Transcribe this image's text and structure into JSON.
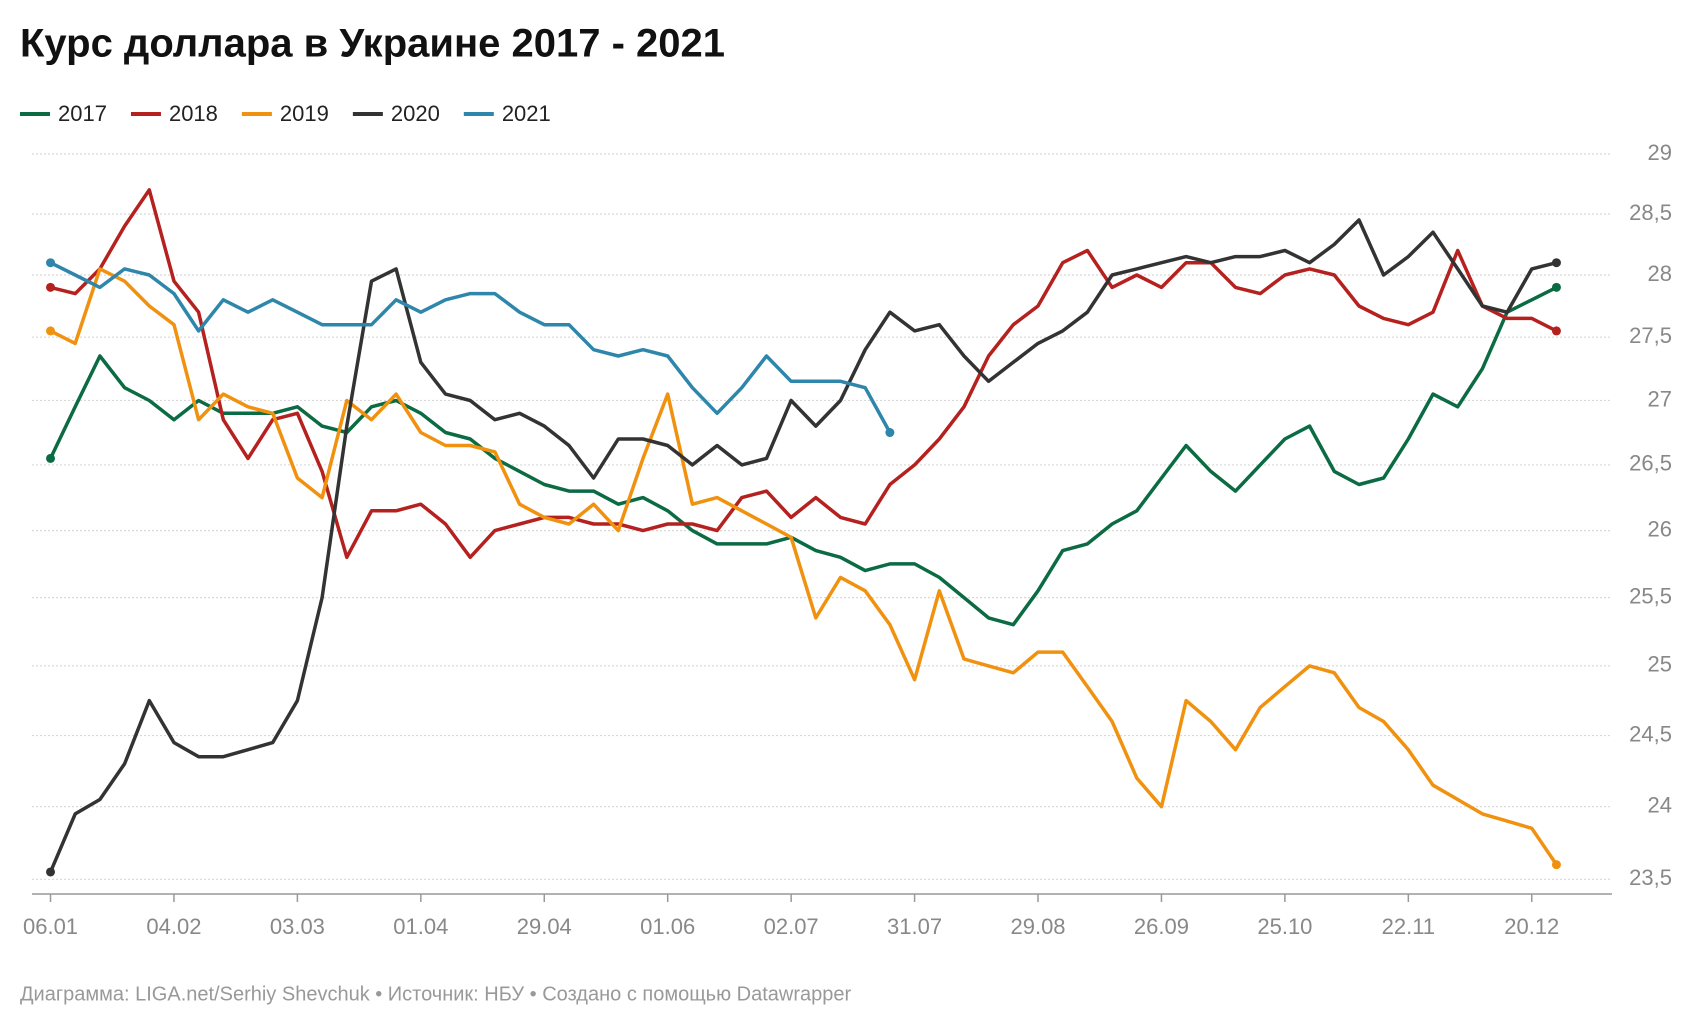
{
  "chart_data": {
    "type": "line",
    "title": "Курс доллара в Украине 2017 - 2021",
    "source": "Диаграмма: LIGA.net/Serhiy Shevchuk • Источник: НБУ • Создано с помощью Datawrapper",
    "legend": "top-left",
    "log_scale": true,
    "grid": true,
    "x": [
      0,
      4,
      8,
      12,
      16,
      20,
      24,
      28,
      32,
      36,
      40,
      44,
      48,
      52,
      56,
      60,
      64,
      68,
      72,
      76,
      80,
      84,
      88,
      92,
      96,
      100,
      104,
      108,
      112,
      116,
      120,
      124,
      128,
      132,
      136,
      140,
      144,
      148,
      152,
      156,
      160,
      164,
      168,
      172,
      176,
      180,
      184,
      188,
      192,
      196,
      200,
      204,
      208,
      212,
      216,
      220,
      224,
      228,
      232,
      236,
      240,
      244
    ],
    "xlim": [
      -3,
      253
    ],
    "xticks": [
      {
        "value": 0,
        "label": "06.01"
      },
      {
        "value": 20,
        "label": "04.02"
      },
      {
        "value": 40,
        "label": "03.03"
      },
      {
        "value": 60,
        "label": "01.04"
      },
      {
        "value": 80,
        "label": "29.04"
      },
      {
        "value": 100,
        "label": "01.06"
      },
      {
        "value": 120,
        "label": "02.07"
      },
      {
        "value": 140,
        "label": "31.07"
      },
      {
        "value": 160,
        "label": "29.08"
      },
      {
        "value": 180,
        "label": "26.09"
      },
      {
        "value": 200,
        "label": "25.10"
      },
      {
        "value": 220,
        "label": "22.11"
      },
      {
        "value": 240,
        "label": "20.12"
      }
    ],
    "ylim": [
      23.4,
      29
    ],
    "yticks": [
      {
        "value": 23.5,
        "label": "23,5"
      },
      24,
      {
        "value": 24.5,
        "label": "24,5"
      },
      25,
      {
        "value": 25.5,
        "label": "25,5"
      },
      26,
      {
        "value": 26.5,
        "label": "26,5"
      },
      27,
      {
        "value": 27.5,
        "label": "27,5"
      },
      28,
      {
        "value": 28.5,
        "label": "28,5"
      },
      29
    ],
    "series": [
      {
        "name": "2017",
        "color": "#0b6b43",
        "values": [
          26.55,
          26.95,
          27.35,
          27.1,
          27.0,
          26.85,
          27.0,
          26.9,
          26.9,
          26.9,
          26.95,
          26.8,
          26.75,
          26.95,
          27.0,
          26.9,
          26.75,
          26.7,
          26.55,
          26.45,
          26.35,
          26.3,
          26.3,
          26.2,
          26.25,
          26.15,
          26.0,
          25.9,
          25.9,
          25.9,
          25.95,
          25.85,
          25.8,
          25.7,
          25.75,
          25.75,
          25.65,
          25.5,
          25.35,
          25.3,
          25.55,
          25.85,
          25.9,
          26.05,
          26.15,
          26.4,
          26.65,
          26.45,
          26.3,
          26.5,
          26.7,
          26.8,
          26.45,
          26.35,
          26.4,
          26.7,
          27.05,
          26.95,
          27.25,
          27.7,
          27.8,
          27.9
        ]
      },
      {
        "name": "2018",
        "color": "#b5211f",
        "values": [
          27.9,
          27.85,
          28.05,
          28.4,
          28.7,
          27.95,
          27.7,
          26.85,
          26.55,
          26.85,
          26.9,
          26.45,
          25.8,
          26.15,
          26.15,
          26.2,
          26.05,
          25.8,
          26.0,
          26.05,
          26.1,
          26.1,
          26.05,
          26.05,
          26.0,
          26.05,
          26.05,
          26.0,
          26.25,
          26.3,
          26.1,
          26.25,
          26.1,
          26.05,
          26.35,
          26.5,
          26.7,
          26.95,
          27.35,
          27.6,
          27.75,
          28.1,
          28.2,
          27.9,
          28.0,
          27.9,
          28.1,
          28.1,
          27.9,
          27.85,
          28.0,
          28.05,
          28.0,
          27.75,
          27.65,
          27.6,
          27.7,
          28.2,
          27.75,
          27.65,
          27.65,
          27.55
        ]
      },
      {
        "name": "2019",
        "color": "#f0920f",
        "values": [
          27.55,
          27.45,
          28.05,
          27.95,
          27.75,
          27.6,
          26.85,
          27.05,
          26.95,
          26.9,
          26.4,
          26.25,
          27.0,
          26.85,
          27.05,
          26.75,
          26.65,
          26.65,
          26.6,
          26.2,
          26.1,
          26.05,
          26.2,
          26.0,
          26.55,
          27.05,
          26.2,
          26.25,
          26.15,
          26.05,
          25.95,
          25.35,
          25.65,
          25.55,
          25.3,
          24.9,
          25.55,
          25.05,
          25.0,
          24.95,
          25.1,
          25.1,
          24.85,
          24.6,
          24.2,
          24.0,
          24.75,
          24.6,
          24.4,
          24.7,
          24.85,
          25.0,
          24.95,
          24.7,
          24.6,
          24.4,
          24.15,
          24.05,
          23.95,
          23.9,
          23.85,
          23.6
        ]
      },
      {
        "name": "2020",
        "color": "#333333",
        "values": [
          23.55,
          23.95,
          24.05,
          24.3,
          24.75,
          24.45,
          24.35,
          24.35,
          24.4,
          24.45,
          24.75,
          25.5,
          26.8,
          27.95,
          28.05,
          27.3,
          27.05,
          27.0,
          26.85,
          26.9,
          26.8,
          26.65,
          26.4,
          26.7,
          26.7,
          26.65,
          26.5,
          26.65,
          26.5,
          26.55,
          27.0,
          26.8,
          27.0,
          27.4,
          27.7,
          27.55,
          27.6,
          27.35,
          27.15,
          27.3,
          27.45,
          27.55,
          27.7,
          28.0,
          28.05,
          28.1,
          28.15,
          28.1,
          28.15,
          28.15,
          28.2,
          28.1,
          28.25,
          28.45,
          28.0,
          28.15,
          28.35,
          28.05,
          27.75,
          27.7,
          28.05,
          28.1
        ]
      },
      {
        "name": "2021",
        "color": "#2e86ab",
        "values": [
          28.1,
          28.0,
          27.9,
          28.05,
          28.0,
          27.85,
          27.55,
          27.8,
          27.7,
          27.8,
          27.7,
          27.6,
          27.6,
          27.6,
          27.8,
          27.7,
          27.8,
          27.85,
          27.85,
          27.7,
          27.6,
          27.6,
          27.4,
          27.35,
          27.4,
          27.35,
          27.1,
          26.9,
          27.1,
          27.35,
          27.15,
          27.15,
          27.15,
          27.1,
          26.75,
          null,
          null,
          null,
          null,
          null,
          null,
          null,
          null,
          null,
          null,
          null,
          null,
          null,
          null,
          null,
          null,
          null,
          null,
          null,
          null,
          null,
          null,
          null,
          null,
          null,
          null,
          null
        ]
      }
    ]
  }
}
